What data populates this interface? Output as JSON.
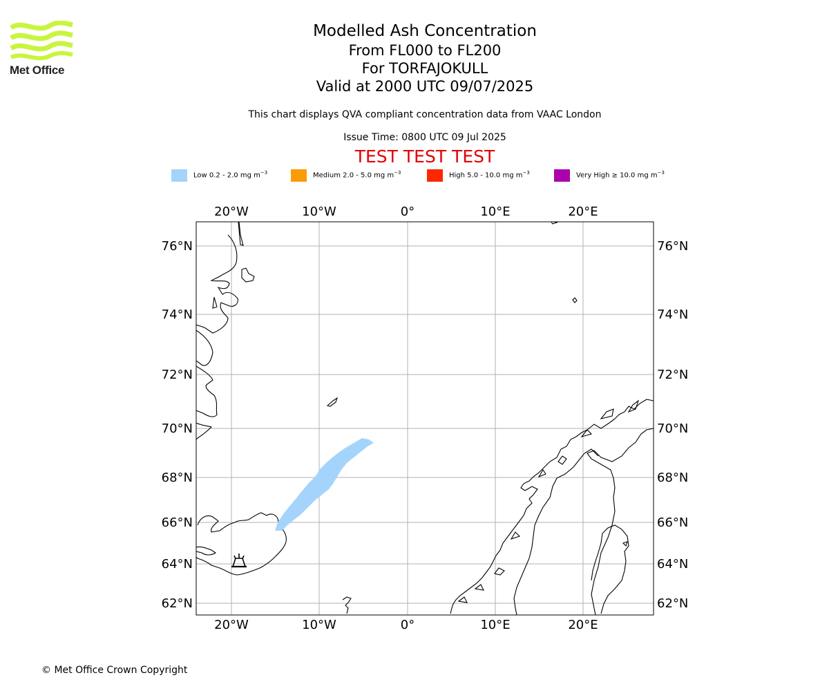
{
  "logo": {
    "text": "Met Office",
    "color": "#c8f53d"
  },
  "title": {
    "line1": "Modelled Ash Concentration",
    "line2": "From FL000 to FL200",
    "line3": "For TORFAJOKULL",
    "line4": "Valid at 2000 UTC 09/07/2025"
  },
  "subtitle": "This chart displays QVA compliant concentration data from VAAC London",
  "issue_time": "Issue Time: 0800 UTC 09 Jul 2025",
  "test_banner": "TEST TEST TEST",
  "legend": [
    {
      "label": "Low 0.2 - 2.0 mg m",
      "unit_exp": "−3",
      "color": "#a4d4fc"
    },
    {
      "label": "Medium 2.0 - 5.0 mg m",
      "unit_exp": "−3",
      "color": "#fb9b08"
    },
    {
      "label": "High 5.0 - 10.0 mg m",
      "unit_exp": "−3",
      "color": "#fd2802"
    },
    {
      "label": "Very High  ≥  10.0 mg m",
      "unit_exp": "−3",
      "color": "#ab00ae"
    }
  ],
  "map": {
    "lon_ticks": [
      "20°W",
      "10°W",
      "0°",
      "10°E",
      "20°E"
    ],
    "lat_ticks": [
      "76°N",
      "74°N",
      "72°N",
      "70°N",
      "68°N",
      "66°N",
      "64°N",
      "62°N"
    ],
    "volcano_name": "TORFAJOKULL",
    "ash_level": "Low"
  },
  "copyright": "© Met Office Crown Copyright"
}
